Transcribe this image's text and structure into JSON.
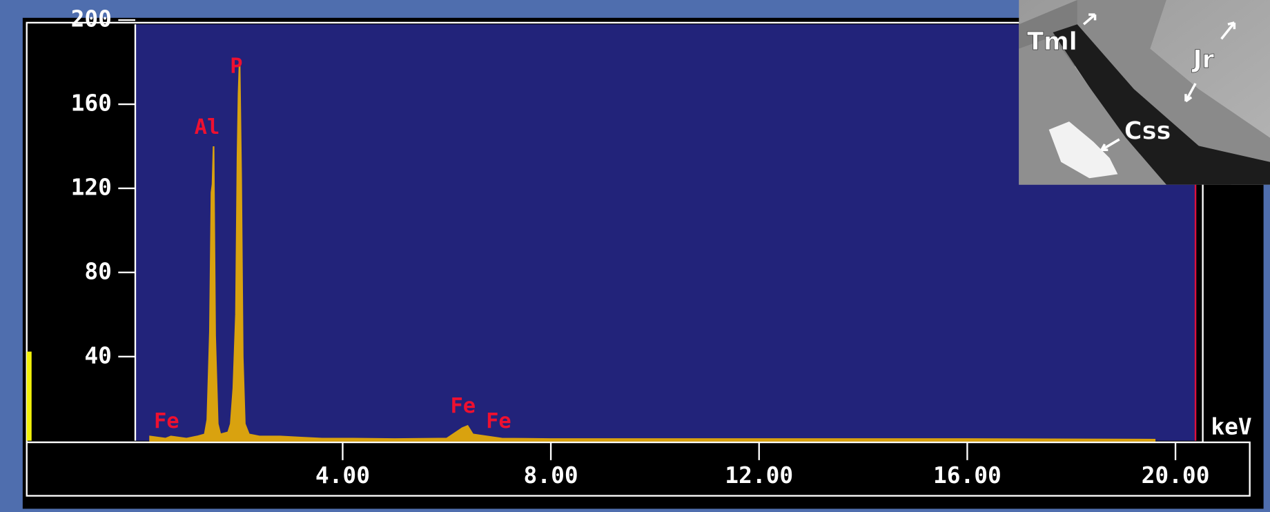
{
  "chart_data": {
    "type": "area",
    "x_label": "keV",
    "color": "#d9a20f",
    "x": [
      0.3,
      0.6,
      0.7,
      1.0,
      1.2,
      1.35,
      1.4,
      1.45,
      1.48,
      1.5,
      1.52,
      1.55,
      1.6,
      1.65,
      1.8,
      1.85,
      1.9,
      1.95,
      1.98,
      2.0,
      2.02,
      2.05,
      2.08,
      2.12,
      2.2,
      2.4,
      2.8,
      3.2,
      3.6,
      4.2,
      5.0,
      6.0,
      6.3,
      6.4,
      6.5,
      7.06,
      8.0,
      10.0,
      12.0,
      16.0,
      19.6
    ],
    "values": [
      2,
      1,
      2,
      1,
      2,
      3,
      10,
      52,
      118,
      122,
      140,
      50,
      8,
      3,
      4,
      8,
      25,
      60,
      135,
      165,
      180,
      125,
      40,
      8,
      3,
      2,
      2,
      1.5,
      1,
      1,
      0.8,
      1,
      6,
      7,
      3,
      1,
      0.8,
      0.8,
      0.8,
      0.8,
      0.5
    ],
    "xlim": [
      0,
      20.4
    ],
    "ylim": [
      0,
      198
    ],
    "xticks": [
      {
        "value": 4,
        "label": "4.00"
      },
      {
        "value": 8,
        "label": "8.00"
      },
      {
        "value": 12,
        "label": "12.00"
      },
      {
        "value": 16,
        "label": "16.00"
      },
      {
        "value": 20,
        "label": "20.00"
      }
    ],
    "yticks": [
      40,
      80,
      120,
      160,
      200
    ],
    "annotations": [
      "Fe",
      "Al",
      "P",
      "Fe",
      "Fe"
    ]
  },
  "inset_labels": [
    "Tml",
    "Jr",
    "Css"
  ]
}
